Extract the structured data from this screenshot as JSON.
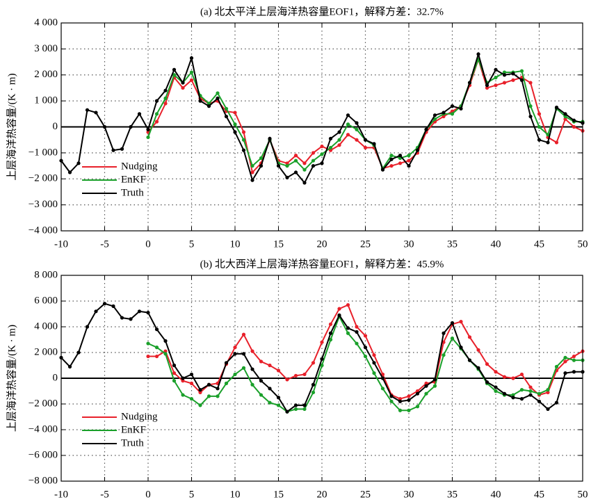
{
  "chart_data": [
    {
      "type": "line",
      "title": "(a) 北太平洋上层海洋热容量EOF1，解释方差：32.7%",
      "ylabel": "上层海洋热容量/(K · m)",
      "x": [
        -10,
        -9,
        -8,
        -7,
        -6,
        -5,
        -4,
        -3,
        -2,
        -1,
        0,
        1,
        2,
        3,
        4,
        5,
        6,
        7,
        8,
        9,
        10,
        11,
        12,
        13,
        14,
        15,
        16,
        17,
        18,
        19,
        20,
        21,
        22,
        23,
        24,
        25,
        26,
        27,
        28,
        29,
        30,
        31,
        32,
        33,
        34,
        35,
        36,
        37,
        38,
        39,
        40,
        41,
        42,
        43,
        44,
        45,
        46,
        47,
        48,
        49,
        50
      ],
      "xlim": [
        -10,
        50
      ],
      "xticks": [
        -10,
        -5,
        0,
        5,
        10,
        15,
        20,
        25,
        30,
        35,
        40,
        45,
        50
      ],
      "ylim": [
        -4000,
        4000
      ],
      "yticks": [
        {
          "value": -4000,
          "label": "−4 000"
        },
        {
          "value": -3000,
          "label": "−3 000"
        },
        {
          "value": -2000,
          "label": "−2 000"
        },
        {
          "value": -1000,
          "label": "−1 000"
        },
        0,
        {
          "value": 1000,
          "label": "1 000"
        },
        {
          "value": 2000,
          "label": "2 000"
        },
        {
          "value": 3000,
          "label": "3 000"
        },
        {
          "value": 4000,
          "label": "4 000"
        }
      ],
      "grid": true,
      "legend": "lower left",
      "series": [
        {
          "name": "Nudging",
          "color": "#e8202a",
          "values": [
            null,
            null,
            null,
            null,
            null,
            null,
            null,
            null,
            null,
            null,
            -200,
            200,
            900,
            1900,
            1500,
            1800,
            1100,
            900,
            1000,
            600,
            550,
            -200,
            -1750,
            -1400,
            -500,
            -1300,
            -1400,
            -1100,
            -1400,
            -1000,
            -750,
            -900,
            -700,
            -300,
            -500,
            -800,
            -800,
            -1600,
            -1500,
            -1400,
            -1300,
            -1000,
            -200,
            200,
            400,
            600,
            800,
            1600,
            2600,
            1500,
            1600,
            1700,
            1800,
            1900,
            1700,
            500,
            -400,
            -600,
            300,
            0,
            -150
          ]
        },
        {
          "name": "EnKF",
          "color": "#1aa02a",
          "values": [
            null,
            null,
            null,
            null,
            null,
            null,
            null,
            null,
            null,
            null,
            -400,
            500,
            1100,
            2000,
            1700,
            2100,
            1200,
            900,
            1300,
            700,
            100,
            -500,
            -1500,
            -1200,
            -500,
            -1400,
            -1500,
            -1300,
            -1650,
            -1300,
            -1050,
            -800,
            -500,
            100,
            -100,
            -500,
            -700,
            -1600,
            -1100,
            -1200,
            -1100,
            -800,
            -100,
            300,
            500,
            500,
            800,
            1700,
            2600,
            1700,
            1900,
            2100,
            2100,
            2150,
            800,
            0,
            -300,
            700,
            400,
            200,
            200
          ]
        },
        {
          "name": "Truth",
          "color": "#000000",
          "values": [
            -1300,
            -1750,
            -1400,
            650,
            550,
            0,
            -900,
            -850,
            0,
            500,
            -100,
            1000,
            1400,
            2200,
            1700,
            2650,
            1000,
            800,
            1100,
            400,
            -200,
            -900,
            -2050,
            -1500,
            -450,
            -1500,
            -1950,
            -1750,
            -2150,
            -1500,
            -1400,
            -450,
            -200,
            450,
            150,
            -500,
            -650,
            -1650,
            -1250,
            -1100,
            -1500,
            -900,
            -100,
            450,
            550,
            800,
            700,
            1700,
            2800,
            1600,
            2200,
            2000,
            2050,
            1800,
            400,
            -500,
            -600,
            750,
            500,
            250,
            150
          ]
        }
      ]
    },
    {
      "type": "line",
      "title": "(b) 北大西洋上层海洋热容量EOF1，解释方差：45.9%",
      "ylabel": "上层海洋热容量/(K · m)",
      "x": [
        -10,
        -9,
        -8,
        -7,
        -6,
        -5,
        -4,
        -3,
        -2,
        -1,
        0,
        1,
        2,
        3,
        4,
        5,
        6,
        7,
        8,
        9,
        10,
        11,
        12,
        13,
        14,
        15,
        16,
        17,
        18,
        19,
        20,
        21,
        22,
        23,
        24,
        25,
        26,
        27,
        28,
        29,
        30,
        31,
        32,
        33,
        34,
        35,
        36,
        37,
        38,
        39,
        40,
        41,
        42,
        43,
        44,
        45,
        46,
        47,
        48,
        49,
        50
      ],
      "xlim": [
        -10,
        50
      ],
      "xticks": [
        -10,
        -5,
        0,
        5,
        10,
        15,
        20,
        25,
        30,
        35,
        40,
        45,
        50
      ],
      "ylim": [
        -8000,
        8000
      ],
      "yticks": [
        {
          "value": -8000,
          "label": "−8 000"
        },
        {
          "value": -6000,
          "label": "−6 000"
        },
        {
          "value": -4000,
          "label": "−4 000"
        },
        {
          "value": -2000,
          "label": "−2 000"
        },
        0,
        {
          "value": 2000,
          "label": "2 000"
        },
        {
          "value": 4000,
          "label": "4 000"
        },
        {
          "value": 6000,
          "label": "6 000"
        },
        {
          "value": 8000,
          "label": "8 000"
        }
      ],
      "grid": true,
      "legend": "lower left",
      "series": [
        {
          "name": "Nudging",
          "color": "#e8202a",
          "values": [
            null,
            null,
            null,
            null,
            null,
            null,
            null,
            null,
            null,
            null,
            1700,
            1700,
            2100,
            400,
            -200,
            -400,
            -1100,
            -500,
            -400,
            1100,
            2400,
            3400,
            2100,
            1300,
            1000,
            600,
            -100,
            200,
            300,
            1200,
            2800,
            4200,
            5400,
            5700,
            4000,
            3300,
            1800,
            300,
            -1300,
            -1600,
            -1400,
            -1000,
            -400,
            -300,
            2800,
            4200,
            4400,
            3200,
            2200,
            1100,
            500,
            100,
            0,
            300,
            -700,
            -1300,
            -1100,
            600,
            1300,
            1700,
            2100
          ]
        },
        {
          "name": "EnKF",
          "color": "#1aa02a",
          "values": [
            null,
            null,
            null,
            null,
            null,
            null,
            null,
            null,
            null,
            null,
            2700,
            2400,
            1900,
            -200,
            -1300,
            -1600,
            -2100,
            -1400,
            -1400,
            -400,
            300,
            800,
            -500,
            -1300,
            -1900,
            -2100,
            -2600,
            -2400,
            -2400,
            -1100,
            1000,
            3000,
            4800,
            3500,
            2700,
            1700,
            400,
            -800,
            -1800,
            -2500,
            -2500,
            -2200,
            -1200,
            -600,
            1800,
            3100,
            2300,
            1400,
            700,
            -400,
            -1000,
            -1300,
            -1300,
            -900,
            -1000,
            -1200,
            -900,
            900,
            1600,
            1400,
            1400
          ]
        },
        {
          "name": "Truth",
          "color": "#000000",
          "values": [
            1600,
            900,
            2000,
            4000,
            5200,
            5800,
            5600,
            4700,
            4600,
            5200,
            5100,
            3800,
            2900,
            1000,
            0,
            300,
            -900,
            -500,
            -800,
            1200,
            1900,
            1900,
            700,
            -200,
            -800,
            -1500,
            -2600,
            -2100,
            -2100,
            -500,
            1500,
            3500,
            4900,
            3900,
            3600,
            2400,
            1200,
            0,
            -1400,
            -1800,
            -1700,
            -1200,
            -600,
            -100,
            3500,
            4300,
            2400,
            1400,
            800,
            -300,
            -700,
            -1200,
            -1500,
            -1600,
            -1300,
            -1800,
            -2400,
            -1900,
            400,
            500,
            500
          ]
        }
      ]
    }
  ]
}
